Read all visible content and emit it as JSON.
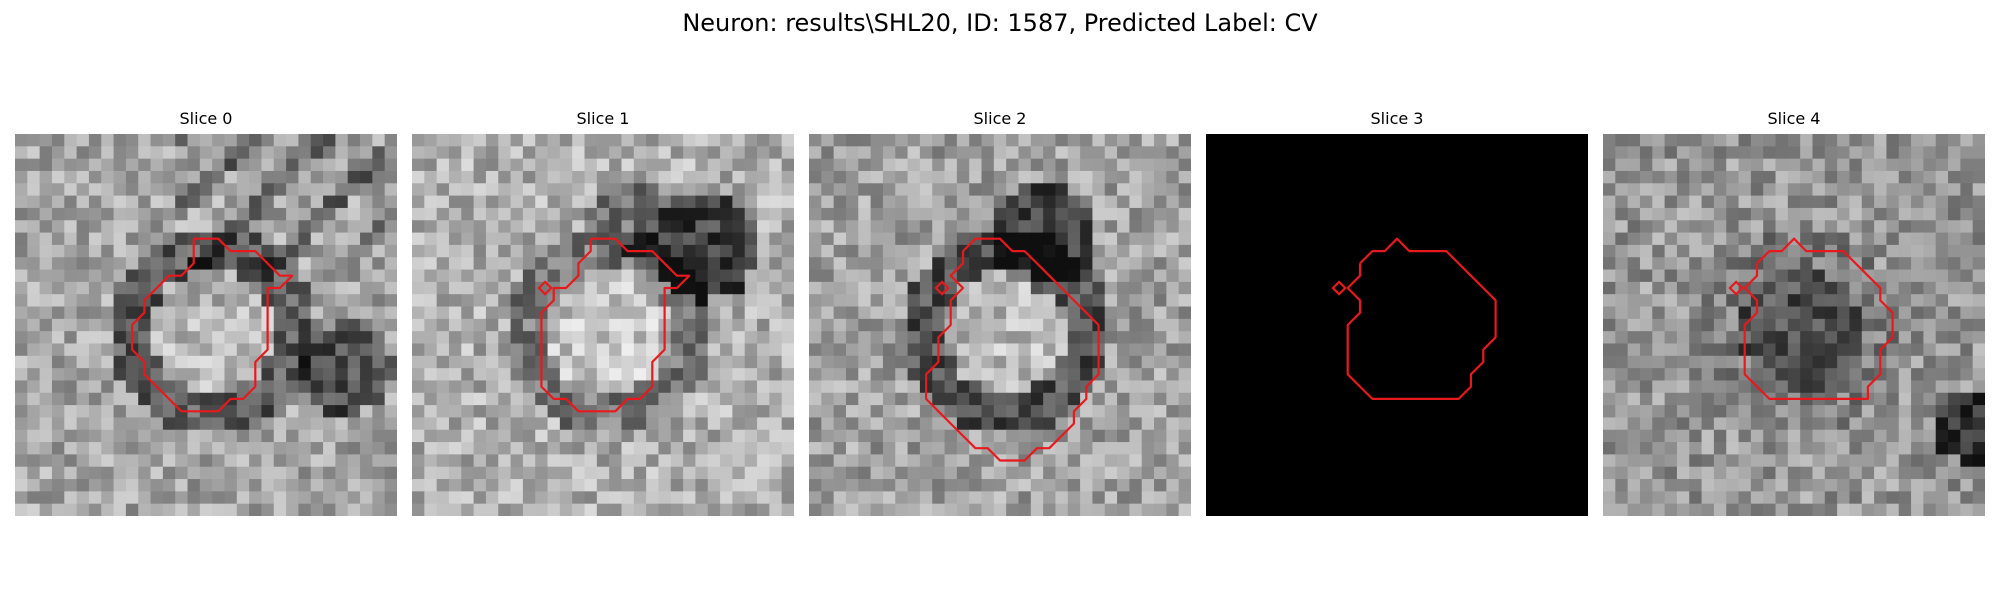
{
  "figure": {
    "title": "Neuron: results\\SHL20, ID: 1587, Predicted Label: CV"
  },
  "panels": [
    {
      "title": "Slice 0"
    },
    {
      "title": "Slice 1"
    },
    {
      "title": "Slice 2"
    },
    {
      "title": "Slice 3"
    },
    {
      "title": "Slice 4"
    }
  ],
  "colors": {
    "contour": "#e8191c",
    "background": "#ffffff"
  }
}
